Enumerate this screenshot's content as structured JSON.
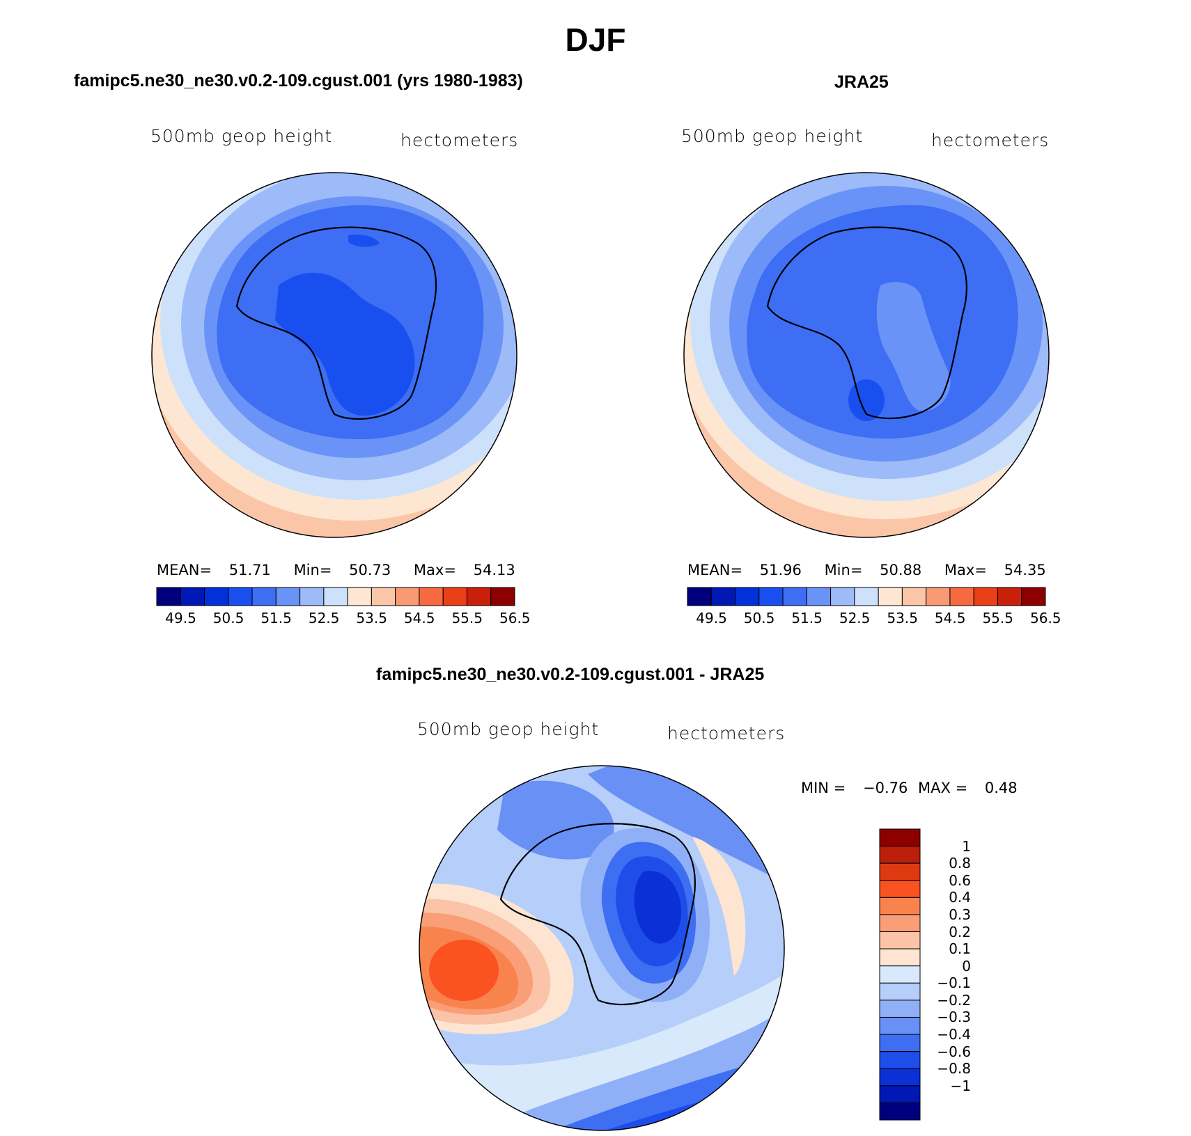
{
  "title": "DJF",
  "panels": [
    {
      "title": "famipc5.ne30_ne30.v0.2-109.cgust.001 (yrs 1980-1983)",
      "left_label": "500mb geop height",
      "right_label": "hectometers",
      "stats": {
        "mean_label": "MEAN=",
        "mean": "51.71",
        "min_label": "Min=",
        "min": "50.73",
        "max_label": "Max=",
        "max": "54.13"
      }
    },
    {
      "title": "JRA25",
      "left_label": "500mb geop height",
      "right_label": "hectometers",
      "stats": {
        "mean_label": "MEAN=",
        "mean": "51.96",
        "min_label": "Min=",
        "min": "50.88",
        "max_label": "Max=",
        "max": "54.35"
      }
    }
  ],
  "abs_colorbar": {
    "colors": [
      "#00007f",
      "#0019b4",
      "#0032d8",
      "#1a4fef",
      "#3d6ef4",
      "#6a93f7",
      "#9dbaf9",
      "#cde1fb",
      "#fde7d3",
      "#fbc6a8",
      "#f99a72",
      "#f56b3f",
      "#ea3f18",
      "#c8200b",
      "#8c0000"
    ],
    "ticks": [
      "49.5",
      "50.5",
      "51.5",
      "52.5",
      "53.5",
      "54.5",
      "55.5",
      "56.5"
    ]
  },
  "diff": {
    "title": "famipc5.ne30_ne30.v0.2-109.cgust.001 - JRA25",
    "left_label": "500mb geop height",
    "right_label": "hectometers",
    "minmax": {
      "min_label": "MIN =",
      "min": "−0.76",
      "max_label": "MAX =",
      "max": "0.48"
    },
    "colorbar": {
      "colors": [
        "#8c0000",
        "#b91f0a",
        "#de3a11",
        "#fb5222",
        "#f9834c",
        "#fa9e78",
        "#fbc4a8",
        "#fde5d2",
        "#d9e9fc",
        "#b5cefa",
        "#8fb0f7",
        "#6890f5",
        "#3e6ef2",
        "#1f4de9",
        "#0a30d6",
        "#0019b4",
        "#00007f"
      ],
      "labels": [
        "1",
        "0.8",
        "0.6",
        "0.4",
        "0.3",
        "0.2",
        "0.1",
        "0",
        "−0.1",
        "−0.2",
        "−0.3",
        "−0.4",
        "−0.6",
        "−0.8",
        "−1"
      ]
    }
  }
}
